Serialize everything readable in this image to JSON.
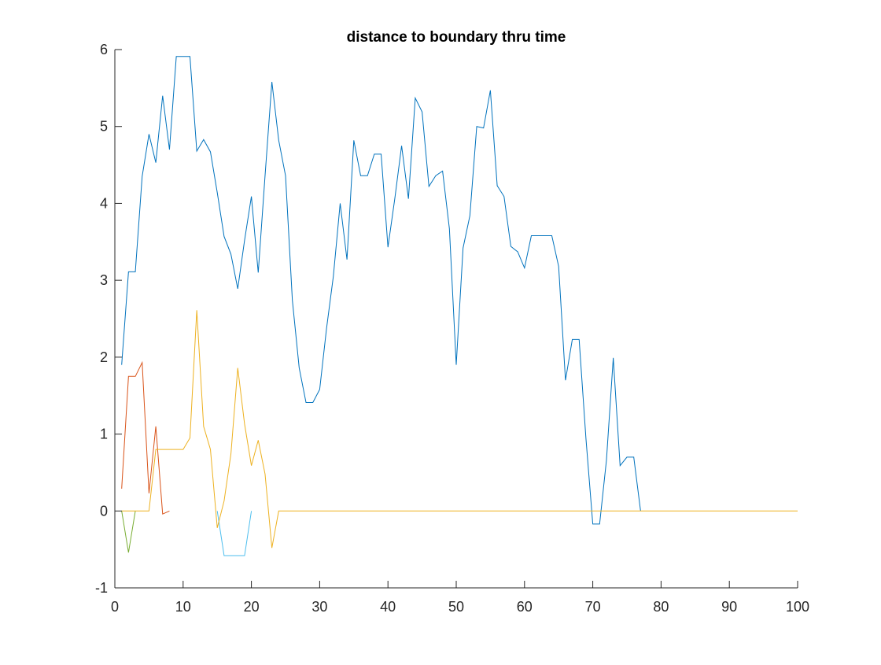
{
  "chart_data": {
    "type": "line",
    "title": "distance to boundary thru time",
    "xlabel": "",
    "ylabel": "",
    "xlim": [
      0,
      100
    ],
    "ylim": [
      -1,
      6
    ],
    "grid": false,
    "box": false,
    "x_ticks": [
      0,
      10,
      20,
      30,
      40,
      50,
      60,
      70,
      80,
      90,
      100
    ],
    "x_tick_labels": [
      "0",
      "10",
      "20",
      "30",
      "40",
      "50",
      "60",
      "70",
      "80",
      "90",
      "100"
    ],
    "y_ticks": [
      -1,
      0,
      1,
      2,
      3,
      4,
      5,
      6
    ],
    "y_tick_labels": [
      "-1",
      "0",
      "1",
      "2",
      "3",
      "4",
      "5",
      "6"
    ],
    "series": [
      {
        "color": "#0072BD",
        "x": [
          1,
          2,
          3,
          4,
          5,
          6,
          7,
          8,
          9,
          10,
          11,
          12,
          13,
          14,
          15,
          16,
          17,
          18,
          19,
          20,
          21,
          22,
          23,
          24,
          25,
          26,
          27,
          28,
          29,
          30,
          31,
          32,
          33,
          34,
          35,
          36,
          37,
          38,
          39,
          40,
          41,
          42,
          43,
          44,
          45,
          46,
          47,
          48,
          49,
          50,
          51,
          52,
          53,
          54,
          55,
          56,
          57,
          58,
          59,
          60,
          61,
          62,
          63,
          64,
          65,
          66,
          67,
          68,
          69,
          70,
          71,
          72,
          73,
          74,
          75,
          76,
          77
        ],
        "values": [
          1.9,
          3.11,
          3.11,
          4.35,
          4.9,
          4.53,
          5.4,
          4.7,
          5.91,
          5.91,
          5.91,
          4.68,
          4.83,
          4.67,
          4.14,
          3.57,
          3.34,
          2.89,
          3.52,
          4.09,
          3.1,
          4.36,
          5.58,
          4.82,
          4.36,
          2.74,
          1.86,
          1.41,
          1.41,
          1.58,
          2.37,
          3.05,
          4.0,
          3.27,
          4.82,
          4.36,
          4.36,
          4.64,
          4.64,
          3.43,
          4.06,
          4.75,
          4.06,
          5.37,
          5.19,
          4.22,
          4.36,
          4.42,
          3.67,
          1.9,
          3.42,
          3.84,
          5.0,
          4.98,
          5.47,
          4.23,
          4.09,
          3.44,
          3.37,
          3.16,
          3.58,
          3.58,
          3.58,
          3.58,
          3.18,
          1.7,
          2.23,
          2.23,
          0.94,
          -0.17,
          -0.17,
          0.66,
          1.99,
          0.59,
          0.7,
          0.7,
          0.0
        ]
      },
      {
        "color": "#D95319",
        "x": [
          1,
          2,
          3,
          4,
          5,
          6,
          7,
          8
        ],
        "values": [
          0.29,
          1.75,
          1.75,
          1.93,
          0.23,
          1.1,
          -0.04,
          0.0
        ]
      },
      {
        "color": "#77AC30",
        "x": [
          1,
          2,
          3
        ],
        "values": [
          0.0,
          -0.54,
          0.0
        ]
      },
      {
        "color": "#4DBEEE",
        "x": [
          15,
          16,
          17,
          18,
          19,
          20
        ],
        "values": [
          0.0,
          -0.58,
          -0.58,
          -0.58,
          -0.58,
          0.0
        ]
      },
      {
        "color": "#EDB120",
        "x": [
          1,
          2,
          3,
          4,
          5,
          6,
          7,
          8,
          9,
          10,
          11,
          12,
          13,
          14,
          15,
          16,
          17,
          18,
          19,
          20,
          21,
          22,
          23,
          24,
          25,
          26,
          27,
          28,
          29,
          30,
          31,
          32,
          33,
          34,
          35,
          36,
          37,
          38,
          39,
          40,
          41,
          42,
          43,
          44,
          45,
          46,
          47,
          48,
          49,
          50,
          51,
          52,
          53,
          54,
          55,
          56,
          57,
          58,
          59,
          60,
          61,
          62,
          63,
          64,
          65,
          66,
          67,
          68,
          69,
          70,
          71,
          72,
          73,
          74,
          75,
          76,
          77,
          78,
          79,
          80,
          81,
          82,
          83,
          84,
          85,
          86,
          87,
          88,
          89,
          90,
          91,
          92,
          93,
          94,
          95,
          96,
          97,
          98,
          99,
          100
        ],
        "values": [
          0,
          0,
          0,
          0,
          0,
          0.8,
          0.8,
          0.8,
          0.8,
          0.8,
          0.95,
          2.61,
          1.1,
          0.8,
          -0.22,
          0.13,
          0.74,
          1.86,
          1.13,
          0.59,
          0.92,
          0.48,
          -0.48,
          0.0,
          0,
          0,
          0,
          0,
          0,
          0,
          0,
          0,
          0,
          0,
          0,
          0,
          0,
          0,
          0,
          0,
          0,
          0,
          0,
          0,
          0,
          0,
          0,
          0,
          0,
          0,
          0,
          0,
          0,
          0,
          0,
          0,
          0,
          0,
          0,
          0,
          0,
          0,
          0,
          0,
          0,
          0,
          0,
          0,
          0,
          0,
          0,
          0,
          0,
          0,
          0,
          0,
          0,
          0,
          0,
          0,
          0,
          0,
          0,
          0,
          0,
          0,
          0,
          0,
          0,
          0,
          0,
          0,
          0,
          0,
          0,
          0,
          0,
          0,
          0,
          0
        ]
      }
    ]
  }
}
